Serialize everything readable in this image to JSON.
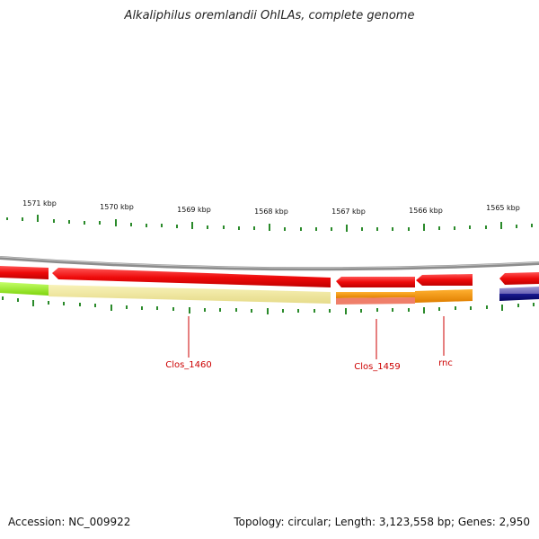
{
  "title": "Alkaliphilus oremlandii OhILAs, complete genome",
  "footer": {
    "accession_label": "Accession:",
    "accession": "NC_009922",
    "topology_text": "Topology: circular; Length: 3,123,558 bp; Genes: 2,950"
  },
  "scale": {
    "labels": [
      "1571 kbp",
      "1570 kbp",
      "1569 kbp",
      "1568 kbp",
      "1567 kbp",
      "1566 kbp",
      "1565 kbp"
    ]
  },
  "genes": [
    {
      "name": "Clos_1460"
    },
    {
      "name": "Clos_1459"
    },
    {
      "name": "rnc"
    }
  ],
  "colors": {
    "tick": "#2a8a2a",
    "backbone": "#8c8c8c",
    "forward_strand": "#ee1111",
    "gene_label": "#cc0000",
    "yellow_band": "#efe7a0",
    "green_band": "#99ee22",
    "orange_band": "#f29100",
    "salmon_band": "#ef7f6a",
    "navy_band": "#0b0b85",
    "lavender_band": "#8e86c8"
  }
}
